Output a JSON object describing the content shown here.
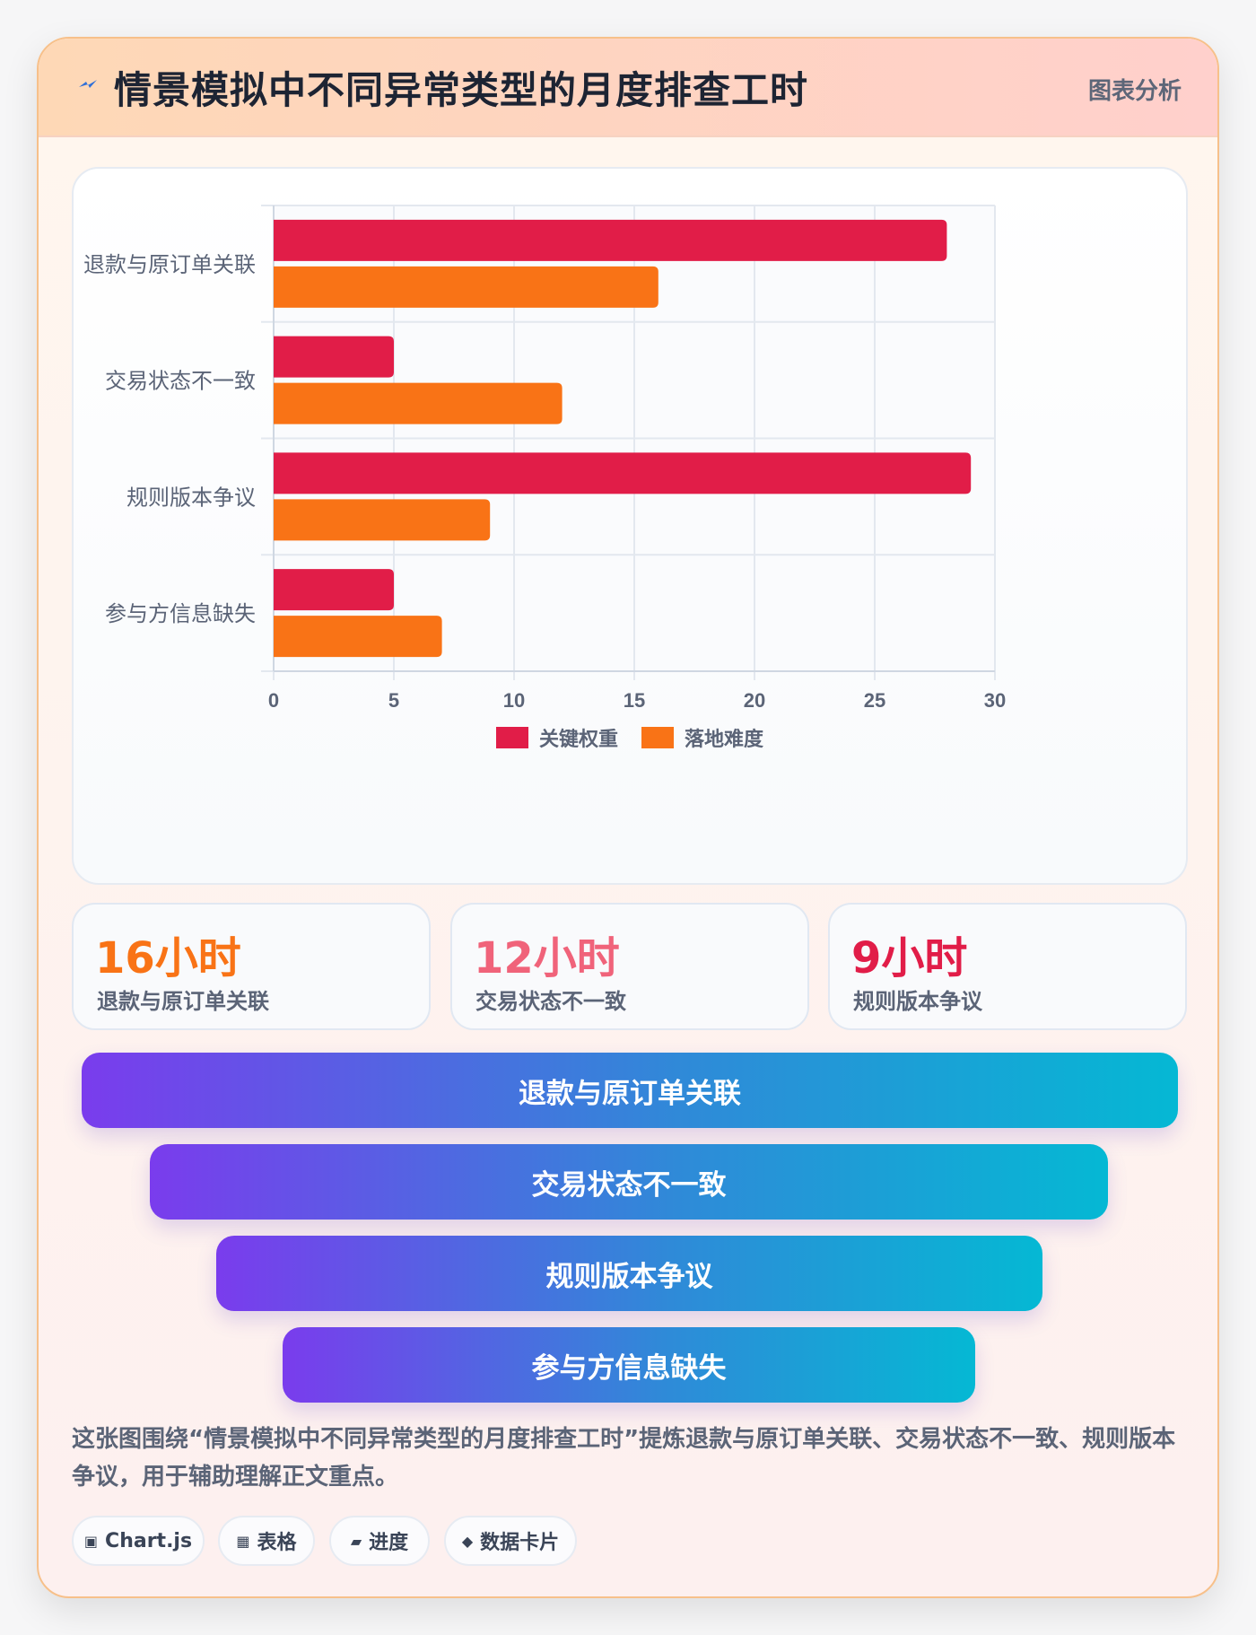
{
  "header": {
    "title": "情景模拟中不同异常类型的月度排查工时",
    "tag": "图表分析",
    "icon": "bolt-icon"
  },
  "chart_data": {
    "type": "bar",
    "orientation": "horizontal",
    "title": "",
    "xlabel": "",
    "ylabel": "",
    "categories": [
      "退款与原订单关联",
      "交易状态不一致",
      "规则版本争议",
      "参与方信息缺失"
    ],
    "series": [
      {
        "name": "关键权重",
        "values": [
          28,
          5,
          29,
          5
        ],
        "color": "#e11d48"
      },
      {
        "name": "落地难度",
        "values": [
          16,
          12,
          9,
          7
        ],
        "color": "#f97316"
      }
    ],
    "xlim": [
      0,
      30
    ],
    "xticks": [
      "0",
      "5",
      "10",
      "15",
      "20",
      "25",
      "30"
    ],
    "grid": true,
    "legend": "bottom"
  },
  "stats": [
    {
      "value": "16小时",
      "label": "退款与原订单关联",
      "color": "#f97316"
    },
    {
      "value": "12小时",
      "label": "交易状态不一致",
      "color": "#f0637a"
    },
    {
      "value": "9小时",
      "label": "规则版本争议",
      "color": "#e11d48"
    }
  ],
  "funnel": [
    "退款与原订单关联",
    "交易状态不一致",
    "规则版本争议",
    "参与方信息缺失"
  ],
  "caption": "这张图围绕“情景模拟中不同异常类型的月度排查工时”提炼退款与原订单关联、交易状态不一致、规则版本争议，用于辅助理解正文重点。",
  "chips": [
    {
      "icon": "chart-icon",
      "glyph": "▣",
      "label": "Chart.js"
    },
    {
      "icon": "table-icon",
      "glyph": "▦",
      "label": "表格"
    },
    {
      "icon": "progress-icon",
      "glyph": "▰",
      "label": "进度"
    },
    {
      "icon": "diamond-icon",
      "glyph": "◆",
      "label": "数据卡片"
    }
  ]
}
